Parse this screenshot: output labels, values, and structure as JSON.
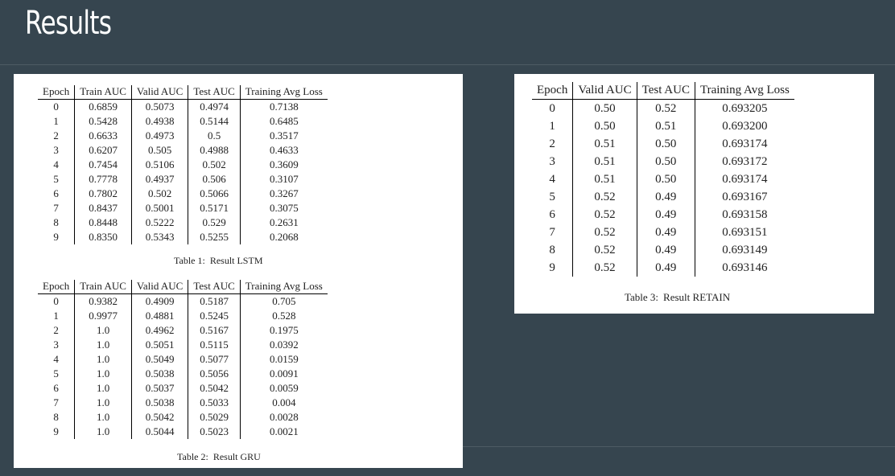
{
  "slide": {
    "title": "Results"
  },
  "tables": [
    {
      "caption_label": "Table 1:",
      "caption_text": "Result LSTM",
      "headers": [
        "Epoch",
        "Train AUC",
        "Valid AUC",
        "Test AUC",
        "Training Avg Loss"
      ],
      "rows": [
        [
          "0",
          "0.6859",
          "0.5073",
          "0.4974",
          "0.7138"
        ],
        [
          "1",
          "0.5428",
          "0.4938",
          "0.5144",
          "0.6485"
        ],
        [
          "2",
          "0.6633",
          "0.4973",
          "0.5",
          "0.3517"
        ],
        [
          "3",
          "0.6207",
          "0.505",
          "0.4988",
          "0.4633"
        ],
        [
          "4",
          "0.7454",
          "0.5106",
          "0.502",
          "0.3609"
        ],
        [
          "5",
          "0.7778",
          "0.4937",
          "0.506",
          "0.3107"
        ],
        [
          "6",
          "0.7802",
          "0.502",
          "0.5066",
          "0.3267"
        ],
        [
          "7",
          "0.8437",
          "0.5001",
          "0.5171",
          "0.3075"
        ],
        [
          "8",
          "0.8448",
          "0.5222",
          "0.529",
          "0.2631"
        ],
        [
          "9",
          "0.8350",
          "0.5343",
          "0.5255",
          "0.2068"
        ]
      ]
    },
    {
      "caption_label": "Table 2:",
      "caption_text": "Result GRU",
      "headers": [
        "Epoch",
        "Train AUC",
        "Valid AUC",
        "Test AUC",
        "Training Avg Loss"
      ],
      "rows": [
        [
          "0",
          "0.9382",
          "0.4909",
          "0.5187",
          "0.705"
        ],
        [
          "1",
          "0.9977",
          "0.4881",
          "0.5245",
          "0.528"
        ],
        [
          "2",
          "1.0",
          "0.4962",
          "0.5167",
          "0.1975"
        ],
        [
          "3",
          "1.0",
          "0.5051",
          "0.5115",
          "0.0392"
        ],
        [
          "4",
          "1.0",
          "0.5049",
          "0.5077",
          "0.0159"
        ],
        [
          "5",
          "1.0",
          "0.5038",
          "0.5056",
          "0.0091"
        ],
        [
          "6",
          "1.0",
          "0.5037",
          "0.5042",
          "0.0059"
        ],
        [
          "7",
          "1.0",
          "0.5038",
          "0.5033",
          "0.004"
        ],
        [
          "8",
          "1.0",
          "0.5042",
          "0.5029",
          "0.0028"
        ],
        [
          "9",
          "1.0",
          "0.5044",
          "0.5023",
          "0.0021"
        ]
      ]
    },
    {
      "caption_label": "Table 3:",
      "caption_text": "Result RETAIN",
      "headers": [
        "Epoch",
        "Valid AUC",
        "Test AUC",
        "Training Avg Loss"
      ],
      "rows": [
        [
          "0",
          "0.50",
          "0.52",
          "0.693205"
        ],
        [
          "1",
          "0.50",
          "0.51",
          "0.693200"
        ],
        [
          "2",
          "0.51",
          "0.50",
          "0.693174"
        ],
        [
          "3",
          "0.51",
          "0.50",
          "0.693172"
        ],
        [
          "4",
          "0.51",
          "0.50",
          "0.693174"
        ],
        [
          "5",
          "0.52",
          "0.49",
          "0.693167"
        ],
        [
          "6",
          "0.52",
          "0.49",
          "0.693158"
        ],
        [
          "7",
          "0.52",
          "0.49",
          "0.693151"
        ],
        [
          "8",
          "0.52",
          "0.49",
          "0.693149"
        ],
        [
          "9",
          "0.52",
          "0.49",
          "0.693146"
        ]
      ]
    }
  ],
  "colors": {
    "background": "#36454f",
    "panel": "#ffffff",
    "title": "#ffffff"
  }
}
